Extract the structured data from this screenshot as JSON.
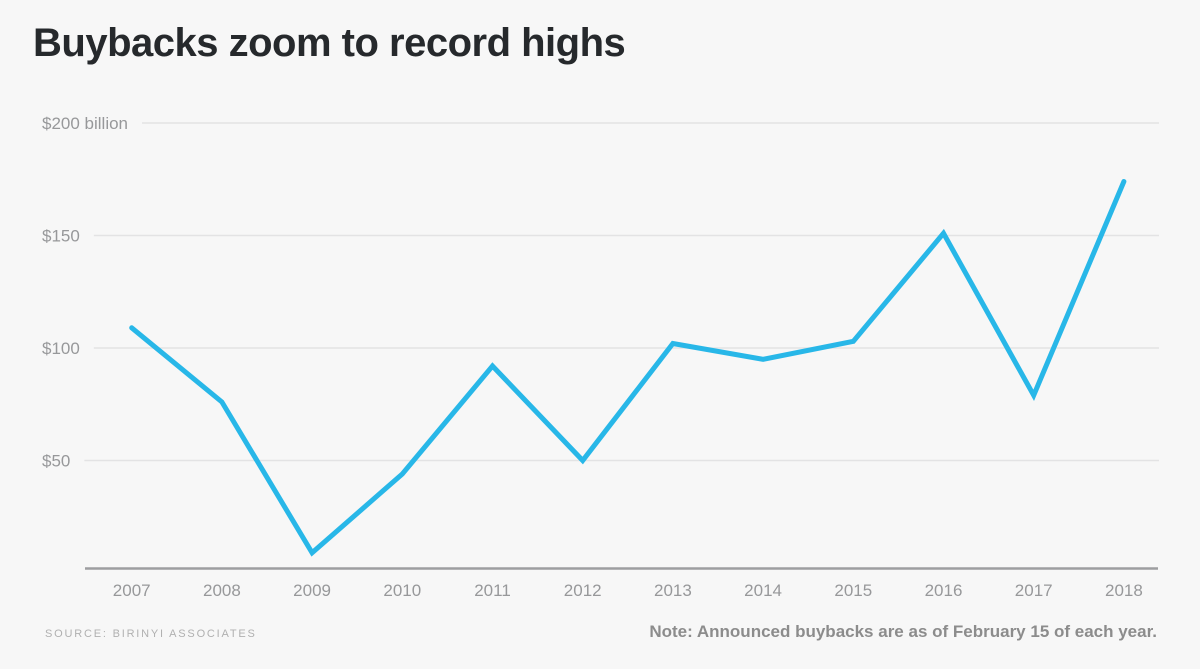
{
  "chart_data": {
    "type": "line",
    "title": "Buybacks zoom to record highs",
    "categories": [
      "2007",
      "2008",
      "2009",
      "2010",
      "2011",
      "2012",
      "2013",
      "2014",
      "2015",
      "2016",
      "2017",
      "2018"
    ],
    "values": [
      109,
      76,
      9,
      44,
      92,
      50,
      102,
      95,
      103,
      151,
      79,
      174
    ],
    "unit_label": "billion",
    "yticks": [
      {
        "value": 200,
        "label": "$200 billion"
      },
      {
        "value": 150,
        "label": "$150"
      },
      {
        "value": 100,
        "label": "$100"
      },
      {
        "value": 50,
        "label": "$50"
      }
    ],
    "ylim": [
      0,
      200
    ],
    "grid": true,
    "legend_position": "none",
    "line_color": "#28b7e8",
    "grid_color": "#e3e3e4",
    "axis_color": "#9d9ea0",
    "tick_label_color": "#97989a",
    "title_color": "#26292c",
    "source": "SOURCE: BIRINYI ASSOCIATES",
    "note": "Note: Announced buybacks are as of February 15 of each year."
  }
}
